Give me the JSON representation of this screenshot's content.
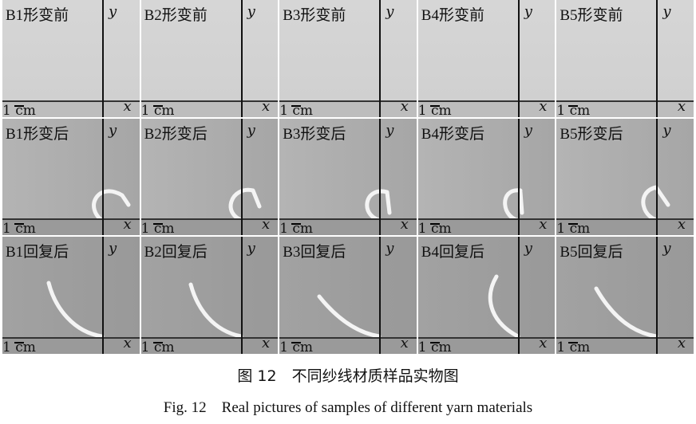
{
  "rows": [
    {
      "labels": [
        "B1形变前",
        "B2形变前",
        "B3形变前",
        "B4形变前",
        "B5形变前"
      ]
    },
    {
      "labels": [
        "B1形变后",
        "B2形变后",
        "B3形变后",
        "B4形变后",
        "B5形变后"
      ]
    },
    {
      "labels": [
        "B1回复后",
        "B2回复后",
        "B3回复后",
        "B4回复后",
        "B5回复后"
      ]
    }
  ],
  "axis": {
    "x": "x",
    "y": "y",
    "scale": "1 cm"
  },
  "caption_cn": "图 12　不同纱线材质样品实物图",
  "caption_en": "Fig. 12　Real pictures of samples of different yarn materials"
}
